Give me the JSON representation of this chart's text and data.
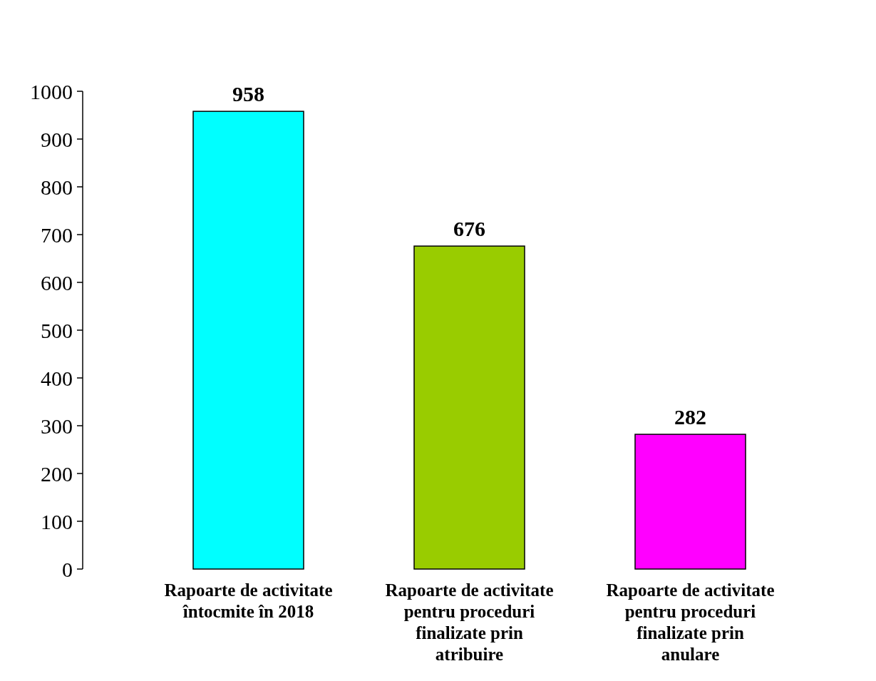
{
  "chart_data": {
    "type": "bar",
    "categories": [
      "Rapoarte de activitate întocmite în 2018",
      "Rapoarte de activitate pentru proceduri finalizate prin atribuire",
      "Rapoarte de activitate pentru proceduri finalizate prin anulare"
    ],
    "values": [
      958,
      676,
      282
    ],
    "colors": [
      "#00ffff",
      "#99cc00",
      "#ff00ff"
    ],
    "ylim": [
      0,
      1000
    ],
    "yticks": [
      0,
      100,
      200,
      300,
      400,
      500,
      600,
      700,
      800,
      900,
      1000
    ],
    "data_labels": true
  }
}
